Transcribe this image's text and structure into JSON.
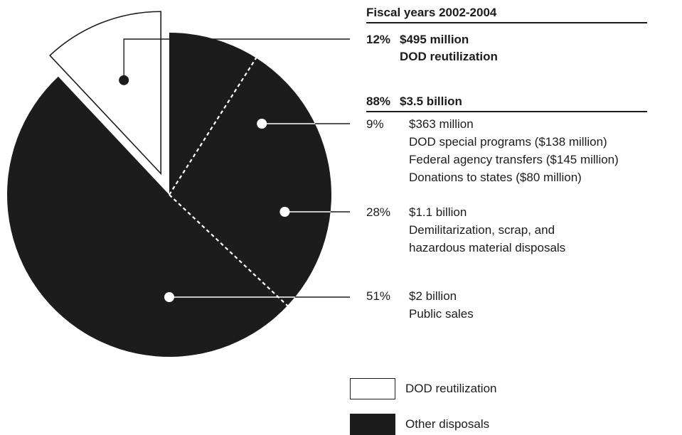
{
  "chart_data": {
    "type": "pie",
    "title": "Fiscal years 2002-2004",
    "groups": [
      {
        "name": "DOD reutilization",
        "percent_label": "12%",
        "amount_label": "$495 million",
        "value": 12,
        "color": "#ffffff",
        "slices": [
          {
            "name": "DOD reutilization",
            "value": 12,
            "percent_label": "12%",
            "lines": [
              "$495 million",
              "DOD reutilization"
            ]
          }
        ]
      },
      {
        "name": "Other disposals",
        "percent_label": "88%",
        "amount_label": "$3.5 billion",
        "value": 88,
        "color": "#1c1c1c",
        "slices": [
          {
            "name": "DOD special programs, federal agency transfers, donations",
            "value": 9,
            "percent_label": "9%",
            "lines": [
              "$363 million",
              "DOD special programs ($138 million)",
              "Federal agency transfers ($145 million)",
              "Donations to states ($80 million)"
            ]
          },
          {
            "name": "Demilitarization, scrap, and hazardous material disposals",
            "value": 28,
            "percent_label": "28%",
            "lines": [
              "$1.1 billion",
              "Demilitarization, scrap, and",
              "hazardous material disposals"
            ]
          },
          {
            "name": "Public sales",
            "value": 51,
            "percent_label": "51%",
            "lines": [
              "$2 billion",
              "Public sales"
            ]
          }
        ]
      }
    ],
    "legend": [
      {
        "label": "DOD reutilization",
        "color": "#ffffff"
      },
      {
        "label": "Other disposals",
        "color": "#1c1c1c"
      }
    ],
    "legend_position": "bottom-right"
  }
}
